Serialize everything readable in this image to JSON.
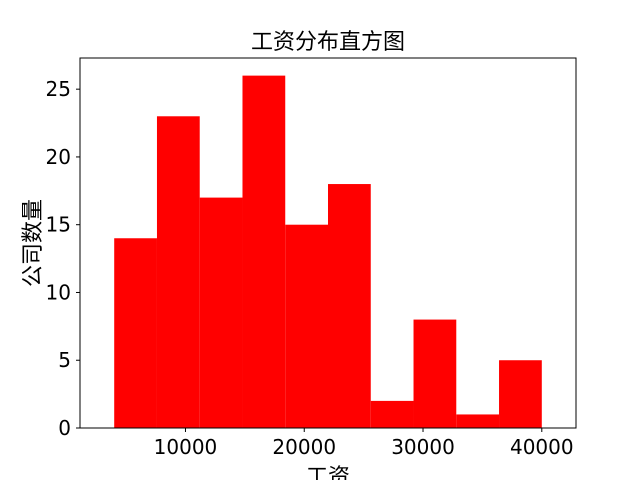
{
  "chart_data": {
    "type": "bar",
    "title": "工资分布直方图",
    "xlabel": "工资",
    "ylabel": "公司数量",
    "bar_color": "#ff0000",
    "bin_edges": [
      4000,
      7600,
      11200,
      14800,
      18400,
      22000,
      25600,
      29200,
      32800,
      36400,
      40000
    ],
    "values": [
      14,
      23,
      17,
      26,
      15,
      18,
      2,
      8,
      1,
      5
    ],
    "xlim": [
      1120,
      42880
    ],
    "ylim": [
      0,
      27.3
    ],
    "xticks": [
      10000,
      20000,
      30000,
      40000
    ],
    "xtick_labels": [
      "10000",
      "20000",
      "30000",
      "40000"
    ],
    "yticks": [
      0,
      5,
      10,
      15,
      20,
      25
    ],
    "ytick_labels": [
      "0",
      "5",
      "10",
      "15",
      "20",
      "25"
    ],
    "grid": false,
    "legend": "none"
  }
}
